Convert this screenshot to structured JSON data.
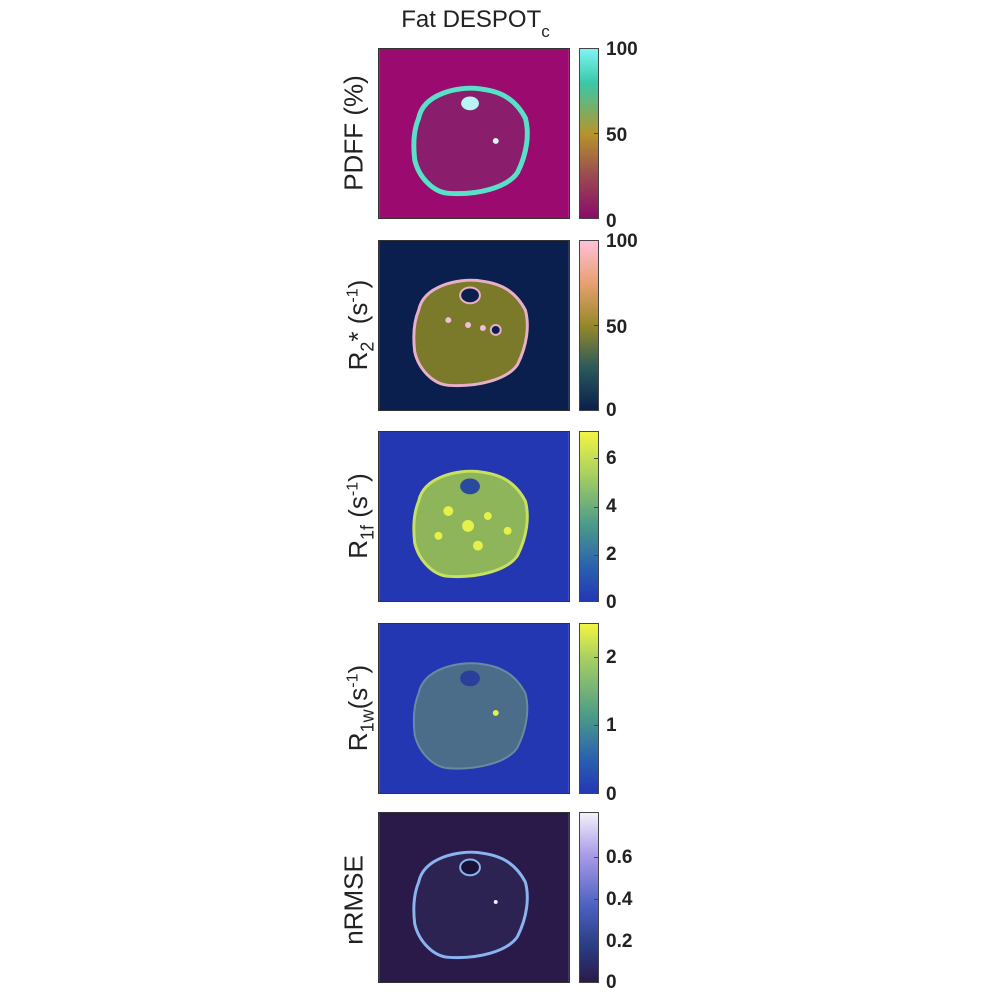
{
  "title": {
    "main": "Fat DESPOT",
    "sub": "c"
  },
  "panels": [
    {
      "label_html_parts": {
        "main": "PDFF (%)"
      },
      "colorbar": {
        "min": "0",
        "mid": "50",
        "max": "100"
      },
      "colors": {
        "background": "#9b0a6e",
        "ring": "#58e0c8",
        "tissue": "#8a1d6c",
        "bar_top": "#80f4f4",
        "bar_mid": "#b5952a",
        "bar_bottom": "#8a0b6a"
      }
    },
    {
      "label_parts": {
        "main": "R",
        "sub": "2",
        "mid": "* (s",
        "sup": "-1",
        "end": ")"
      },
      "colorbar": {
        "min": "0",
        "mid": "50",
        "max": "100"
      },
      "colors": {
        "background": "#0a1f4d",
        "tissue": "#7a7a2a",
        "ring": "#e8b0c8",
        "bar_top": "#ffc0d8",
        "bar_mid": "#96882a",
        "bar_bottom": "#0a1f4d"
      }
    },
    {
      "label_parts": {
        "main": "R",
        "sub": "1f",
        "mid": " (s",
        "sup": "-1",
        "end": ")"
      },
      "colorbar": {
        "t0": "0",
        "t2": "2",
        "t4": "4",
        "t6": "6"
      },
      "colors": {
        "background": "#2437b3",
        "tissue": "#8fb55a",
        "speckle": "#e6f04a",
        "bar_top": "#f2f542",
        "bar_mid": "#4a9a8a",
        "bar_bottom": "#2437b3"
      }
    },
    {
      "label_parts": {
        "main": "R",
        "sub": "1w",
        "mid": "(s",
        "sup": "-1",
        "end": ")"
      },
      "colorbar": {
        "t0": "0",
        "t1": "1",
        "t2": "2"
      },
      "colors": {
        "background": "#2437b3",
        "tissue": "#4b6d8a",
        "bar_top": "#f2f542",
        "bar_mid": "#4a9a8a",
        "bar_bottom": "#2437b3"
      }
    },
    {
      "label_parts": {
        "main": "nRMSE"
      },
      "colorbar": {
        "t0": "0",
        "t1": "0.2",
        "t2": "0.4",
        "t3": "0.6"
      },
      "colors": {
        "background": "#2a1a4a",
        "ring": "#8ab4f0",
        "tissue": "#2c2352",
        "bar_top": "#f4f0fa",
        "bar_mid": "#8a7ae0",
        "bar_bottom": "#2a1a4a"
      }
    }
  ]
}
